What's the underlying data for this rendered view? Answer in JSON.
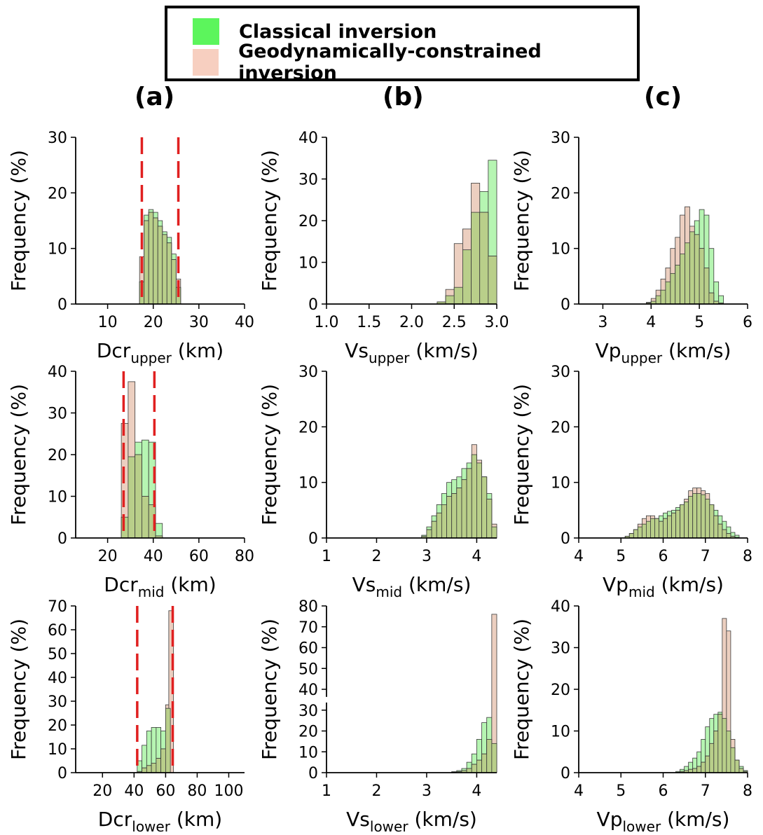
{
  "legend": {
    "items": [
      {
        "label": "Classical inversion",
        "color": "#5cf55c"
      },
      {
        "label": "Geodynamically-constrained inversion",
        "color": "#f7cfc0"
      }
    ]
  },
  "panel_labels": [
    "(a)",
    "(b)",
    "(c)"
  ],
  "colors": {
    "classical_fill": "#b6f5b2",
    "geo_fill": "#eccfc0",
    "overlap_fill": "#b9cf8a",
    "prior_bound": "#e02020"
  },
  "chart_data": [
    {
      "type": "bar",
      "id": "dcr-upper",
      "xlabel_main": "Dcr",
      "xlabel_sub": "upper",
      "xlabel_unit": "(km)",
      "ylabel": "Frequency (%)",
      "xlim": [
        3,
        40
      ],
      "ylim": [
        0,
        30
      ],
      "xticks": [
        10,
        20,
        30,
        40
      ],
      "yticks": [
        0,
        10,
        20,
        30
      ],
      "bin_width": 1,
      "series": [
        {
          "name": "Classical inversion",
          "x": [
            17.5,
            18.5,
            19.5,
            20.5,
            21.5,
            22.5,
            23.5,
            24.5,
            25.5
          ],
          "values": [
            4,
            16,
            17,
            16.5,
            15,
            13,
            12,
            9,
            3
          ]
        },
        {
          "name": "Geodynamically-constrained inversion",
          "x": [
            17.5,
            18.5,
            19.5,
            20.5,
            21.5,
            22.5,
            23.5,
            24.5,
            25.5
          ],
          "values": [
            8.5,
            15,
            16.5,
            15.5,
            14,
            12.5,
            11,
            8,
            4.5
          ]
        }
      ],
      "vlines": [
        17.5,
        25.5
      ]
    },
    {
      "type": "bar",
      "id": "vs-upper",
      "xlabel_main": "Vs",
      "xlabel_sub": "upper",
      "xlabel_unit": "(km/s)",
      "ylabel": "Frequency (%)",
      "xlim": [
        1.0,
        3.0
      ],
      "ylim": [
        0,
        40
      ],
      "xticks": [
        1.0,
        1.5,
        2.0,
        2.5,
        3.0
      ],
      "yticks": [
        0,
        10,
        20,
        30,
        40
      ],
      "bin_width": 0.1,
      "series": [
        {
          "name": "Classical inversion",
          "x": [
            2.35,
            2.45,
            2.55,
            2.65,
            2.75,
            2.85,
            2.95
          ],
          "values": [
            0.5,
            2,
            4,
            13,
            22,
            27,
            34.5
          ]
        },
        {
          "name": "Geodynamically-constrained inversion",
          "x": [
            2.35,
            2.45,
            2.55,
            2.65,
            2.75,
            2.85,
            2.95
          ],
          "values": [
            0.5,
            3.5,
            14.5,
            18,
            29,
            22,
            11.5
          ]
        }
      ],
      "vlines": []
    },
    {
      "type": "bar",
      "id": "vp-upper",
      "xlabel_main": "Vp",
      "xlabel_sub": "upper",
      "xlabel_unit": "(km/s)",
      "ylabel": "Frequency (%)",
      "xlim": [
        2.5,
        6
      ],
      "ylim": [
        0,
        30
      ],
      "xticks": [
        3,
        4,
        5,
        6
      ],
      "yticks": [
        0,
        10,
        20,
        30
      ],
      "bin_width": 0.1,
      "series": [
        {
          "name": "Classical inversion",
          "x": [
            3.95,
            4.05,
            4.15,
            4.25,
            4.35,
            4.45,
            4.55,
            4.65,
            4.75,
            4.85,
            4.95,
            5.05,
            5.15,
            5.25,
            5.35,
            5.45
          ],
          "values": [
            0.2,
            0.5,
            1.5,
            2.5,
            4,
            5.5,
            7,
            9,
            11,
            13,
            15,
            17,
            16,
            10,
            4,
            1.5
          ]
        },
        {
          "name": "Geodynamically-constrained inversion",
          "x": [
            3.95,
            4.05,
            4.15,
            4.25,
            4.35,
            4.45,
            4.55,
            4.65,
            4.75,
            4.85,
            4.95,
            5.05,
            5.15,
            5.25,
            5.35,
            5.45
          ],
          "values": [
            0.3,
            1,
            2.5,
            4.5,
            6.5,
            10,
            12,
            16,
            17.5,
            14,
            12.5,
            10,
            6.5,
            2,
            0.5,
            0.2
          ]
        }
      ],
      "vlines": []
    },
    {
      "type": "bar",
      "id": "dcr-mid",
      "xlabel_main": "Dcr",
      "xlabel_sub": "mid",
      "xlabel_unit": "(km)",
      "ylabel": "Frequency (%)",
      "xlim": [
        6,
        80
      ],
      "ylim": [
        0,
        40
      ],
      "xticks": [
        20,
        40,
        60,
        80
      ],
      "yticks": [
        0,
        10,
        20,
        30,
        40
      ],
      "bin_width": 3,
      "series": [
        {
          "name": "Classical inversion",
          "x": [
            27.5,
            30.5,
            33.5,
            36.5,
            39.5,
            42.5
          ],
          "values": [
            5,
            19.5,
            23,
            23.5,
            23,
            3.5
          ]
        },
        {
          "name": "Geodynamically-constrained inversion",
          "x": [
            27.5,
            30.5,
            33.5,
            36.5,
            39.5,
            42.5
          ],
          "values": [
            27.5,
            37.5,
            20,
            10,
            8,
            0.5
          ]
        }
      ],
      "vlines": [
        27,
        40.5
      ]
    },
    {
      "type": "bar",
      "id": "vs-mid",
      "xlabel_main": "Vs",
      "xlabel_sub": "mid",
      "xlabel_unit": "(km/s)",
      "ylabel": "Frequency (%)",
      "xlim": [
        1,
        4.4
      ],
      "ylim": [
        0,
        30
      ],
      "xticks": [
        1,
        2,
        3,
        4
      ],
      "yticks": [
        0,
        10,
        20,
        30
      ],
      "bin_width": 0.1,
      "series": [
        {
          "name": "Classical inversion",
          "x": [
            2.95,
            3.05,
            3.15,
            3.25,
            3.35,
            3.45,
            3.55,
            3.65,
            3.75,
            3.85,
            3.95,
            4.05,
            4.15,
            4.25,
            4.35
          ],
          "values": [
            0.5,
            2,
            4,
            6,
            8,
            10,
            10.5,
            11,
            12.5,
            13.5,
            15,
            13.5,
            11,
            8,
            2
          ]
        },
        {
          "name": "Geodynamically-constrained inversion",
          "x": [
            2.95,
            3.05,
            3.15,
            3.25,
            3.35,
            3.45,
            3.55,
            3.65,
            3.75,
            3.85,
            3.95,
            4.05,
            4.15,
            4.25,
            4.35
          ],
          "values": [
            0.3,
            1.5,
            3,
            4.5,
            6,
            7.5,
            8,
            9,
            10.5,
            12.5,
            16.8,
            14,
            11,
            7,
            2.5
          ]
        }
      ],
      "vlines": []
    },
    {
      "type": "bar",
      "id": "vp-mid",
      "xlabel_main": "Vp",
      "xlabel_sub": "mid",
      "xlabel_unit": "(km/s)",
      "ylabel": "Frequency (%)",
      "xlim": [
        4,
        8
      ],
      "ylim": [
        0,
        30
      ],
      "xticks": [
        4,
        5,
        6,
        7,
        8
      ],
      "yticks": [
        0,
        10,
        20,
        30
      ],
      "bin_width": 0.1,
      "series": [
        {
          "name": "Classical inversion",
          "x": [
            5.15,
            5.25,
            5.35,
            5.45,
            5.55,
            5.65,
            5.75,
            5.85,
            5.95,
            6.05,
            6.15,
            6.25,
            6.35,
            6.45,
            6.55,
            6.65,
            6.75,
            6.85,
            6.95,
            7.05,
            7.15,
            7.25,
            7.35,
            7.45,
            7.55,
            7.65,
            7.75
          ],
          "values": [
            0.3,
            0.8,
            1.5,
            2,
            2.5,
            3,
            3.5,
            3.5,
            4,
            4.5,
            4.8,
            5,
            5.5,
            6,
            6.5,
            7.5,
            8,
            8,
            7.8,
            7,
            6,
            5,
            4,
            3,
            2,
            1,
            0.5
          ]
        },
        {
          "name": "Geodynamically-constrained inversion",
          "x": [
            5.15,
            5.25,
            5.35,
            5.45,
            5.55,
            5.65,
            5.75,
            5.85,
            5.95,
            6.05,
            6.15,
            6.25,
            6.35,
            6.45,
            6.55,
            6.65,
            6.75,
            6.85,
            6.95,
            7.05,
            7.15,
            7.25,
            7.35,
            7.45,
            7.55,
            7.65,
            7.75
          ],
          "values": [
            0.3,
            0.8,
            1.5,
            2.5,
            3.5,
            4,
            4,
            3.5,
            3,
            3.5,
            4,
            4.5,
            5,
            6,
            7,
            8.5,
            9,
            9,
            8.5,
            8,
            6,
            4,
            2.5,
            1.5,
            0.8,
            0.3,
            0.1
          ]
        }
      ],
      "vlines": []
    },
    {
      "type": "bar",
      "id": "dcr-lower",
      "xlabel_main": "Dcr",
      "xlabel_sub": "lower",
      "xlabel_unit": "(km)",
      "ylabel": "Frequency (%)",
      "xlim": [
        3,
        110
      ],
      "ylim": [
        0,
        70
      ],
      "xticks": [
        20,
        40,
        60,
        80,
        100
      ],
      "yticks": [
        0,
        10,
        20,
        30,
        40,
        50,
        60,
        70
      ],
      "bin_width": 3,
      "series": [
        {
          "name": "Classical inversion",
          "x": [
            43.5,
            46.5,
            49.5,
            52.5,
            55.5,
            58.5,
            61.5
          ],
          "values": [
            5,
            11.5,
            17.5,
            19,
            19,
            17.5,
            27
          ]
        },
        {
          "name": "Geodynamically-constrained inversion",
          "x": [
            43.5,
            46.5,
            49.5,
            52.5,
            55.5,
            58.5,
            61.5,
            63.5
          ],
          "values": [
            0.5,
            2,
            3,
            4,
            6,
            10,
            28.5,
            68
          ]
        }
      ],
      "vlines": [
        42,
        64.5
      ]
    },
    {
      "type": "bar",
      "id": "vs-lower",
      "xlabel_main": "Vs",
      "xlabel_sub": "lower",
      "xlabel_unit": "(km/s)",
      "ylabel": "Frequency (%)",
      "xlim": [
        1,
        4.4
      ],
      "ylim": [
        0,
        80
      ],
      "xticks": [
        1,
        2,
        3,
        4
      ],
      "yticks": [
        0,
        10,
        20,
        30,
        40,
        50,
        60,
        70,
        80
      ],
      "axis_break": 35,
      "bin_width": 0.1,
      "series": [
        {
          "name": "Classical inversion",
          "x": [
            3.55,
            3.65,
            3.75,
            3.85,
            3.95,
            4.05,
            4.15,
            4.25,
            4.35
          ],
          "values": [
            0.5,
            1,
            2,
            5,
            9,
            16,
            24,
            26.5,
            14
          ]
        },
        {
          "name": "Geodynamically-constrained inversion",
          "x": [
            3.55,
            3.65,
            3.75,
            3.85,
            3.95,
            4.05,
            4.15,
            4.25,
            4.35
          ],
          "values": [
            0.2,
            0.5,
            1,
            2,
            4,
            6,
            9,
            16,
            76
          ]
        }
      ],
      "vlines": []
    },
    {
      "type": "bar",
      "id": "vp-lower",
      "xlabel_main": "Vp",
      "xlabel_sub": "lower",
      "xlabel_unit": "(km/s)",
      "ylabel": "Frequency (%)",
      "xlim": [
        4,
        8
      ],
      "ylim": [
        0,
        40
      ],
      "xticks": [
        4,
        5,
        6,
        7,
        8
      ],
      "yticks": [
        0,
        10,
        20,
        30,
        40
      ],
      "bin_width": 0.1,
      "series": [
        {
          "name": "Classical inversion",
          "x": [
            6.35,
            6.45,
            6.55,
            6.65,
            6.75,
            6.85,
            6.95,
            7.05,
            7.15,
            7.25,
            7.35,
            7.45,
            7.55,
            7.65,
            7.75,
            7.85,
            7.95
          ],
          "values": [
            0.3,
            0.8,
            1.5,
            2.5,
            3.5,
            5,
            8,
            11,
            13,
            14,
            14.5,
            13,
            10,
            6,
            3,
            1.5,
            0.5
          ]
        },
        {
          "name": "Geodynamically-constrained inversion",
          "x": [
            6.35,
            6.45,
            6.55,
            6.65,
            6.75,
            6.85,
            6.95,
            7.05,
            7.15,
            7.25,
            7.35,
            7.45,
            7.55,
            7.65,
            7.75,
            7.85,
            7.95
          ],
          "values": [
            0.1,
            0.3,
            0.5,
            0.8,
            1,
            1.5,
            2.5,
            4,
            7,
            10,
            14,
            37,
            34,
            8,
            3,
            1,
            0.3
          ]
        }
      ],
      "vlines": []
    }
  ]
}
